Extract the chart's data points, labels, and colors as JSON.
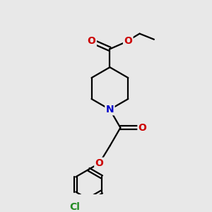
{
  "background_color": "#e8e8e8",
  "bond_color": "#000000",
  "nitrogen_color": "#0000cc",
  "oxygen_color": "#cc0000",
  "chlorine_color": "#228B22",
  "line_width": 1.6,
  "figsize": [
    3.0,
    3.0
  ],
  "dpi": 100,
  "xlim": [
    0,
    10
  ],
  "ylim": [
    0,
    10
  ]
}
